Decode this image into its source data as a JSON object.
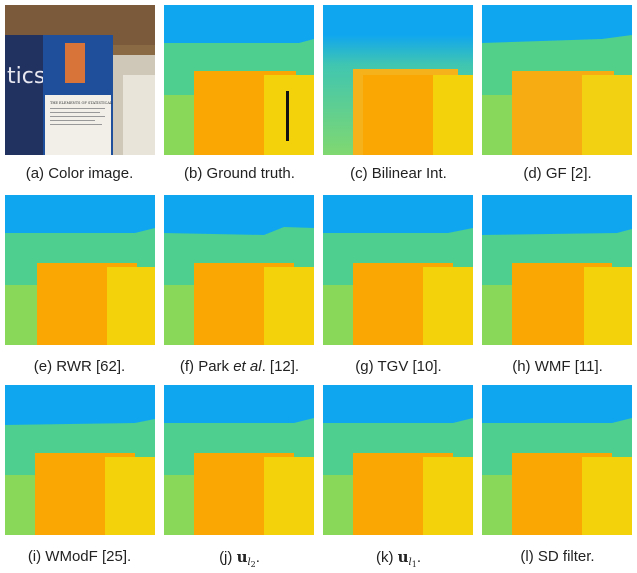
{
  "colors": {
    "sky": "#10a6ef",
    "band": "#4ecf8f",
    "book_orange": "#fba703",
    "right_yellow": "#f4d20b"
  },
  "captions": {
    "a": "(a) Color image.",
    "b": "(b) Ground truth.",
    "c": "(c) Bilinear Int.",
    "d": "(d) GF [2].",
    "e": "(e) RWR [62].",
    "f_pre": "(f) Park ",
    "f_em": "et al",
    "f_post": ". [12].",
    "g": "(g) TGV [10].",
    "h": "(h) WMF [11].",
    "i": "(i) WModF [25].",
    "j_pre": "(j) ",
    "j_sym": "u",
    "j_sub": "l",
    "j_subsub": "2",
    "j_post": ".",
    "k_pre": "(k) ",
    "k_sym": "u",
    "k_sub": "l",
    "k_subsub": "1",
    "k_post": ".",
    "l": "(l) SD filter."
  },
  "book": {
    "cover_title": "THE ELEMENTS OF STATISTICAL LEARNING",
    "spine_text": "tics"
  }
}
